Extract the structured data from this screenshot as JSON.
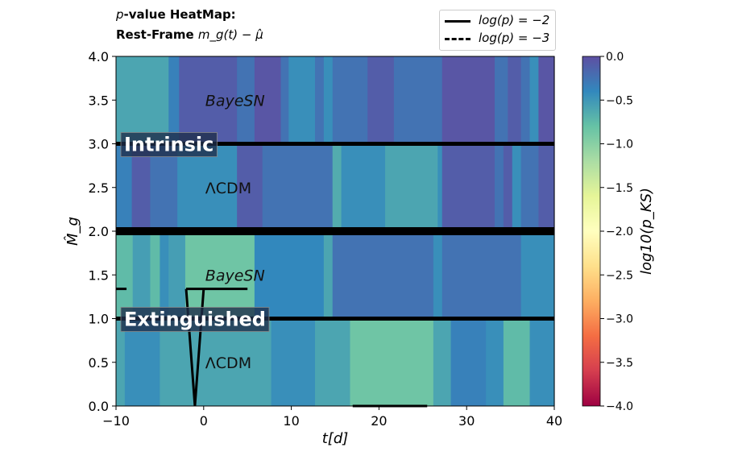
{
  "title": {
    "line1_prefix": "p",
    "line1_suffix": "-value HeatMap:",
    "line2_bold": "Rest-Frame ",
    "line2_math": "m_g(t) − μ̂"
  },
  "legend": [
    {
      "label": "log(p) = −2",
      "style": "solid"
    },
    {
      "label": "log(p) = −3",
      "style": "dashed"
    }
  ],
  "chart_data": {
    "type": "heatmap",
    "xlabel": "t[d]",
    "ylabel": "M̂_g",
    "xlim": [
      -10,
      40
    ],
    "ylim": [
      0,
      4
    ],
    "xticks": [
      -10,
      0,
      10,
      20,
      30,
      40
    ],
    "yticks": [
      0.0,
      0.5,
      1.0,
      1.5,
      2.0,
      2.5,
      3.0,
      3.5,
      4.0
    ],
    "colorbar": {
      "label": "log10(p_KS)",
      "range": [
        -4,
        0
      ],
      "ticks": [
        0.0,
        -0.5,
        -1.0,
        -1.5,
        -2.0,
        -2.5,
        -3.0,
        -3.5,
        -4.0
      ],
      "colormap": "Spectral"
    },
    "bands": [
      {
        "ylim": [
          3.0,
          4.0
        ],
        "label": "BayeSN",
        "label_pos": [
          0,
          3.5
        ],
        "segments": [
          {
            "x0": -10,
            "x1": -4,
            "v": -0.6
          },
          {
            "x0": -4,
            "x1": -2.8,
            "v": -0.35
          },
          {
            "x0": -2.8,
            "x1": 3.8,
            "v": -0.1
          },
          {
            "x0": 3.8,
            "x1": 5.8,
            "v": -0.25
          },
          {
            "x0": 5.8,
            "x1": 8.8,
            "v": -0.05
          },
          {
            "x0": 8.8,
            "x1": 9.7,
            "v": -0.25
          },
          {
            "x0": 9.7,
            "x1": 12.7,
            "v": -0.45
          },
          {
            "x0": 12.7,
            "x1": 13.7,
            "v": -0.25
          },
          {
            "x0": 13.7,
            "x1": 14.7,
            "v": -0.45
          },
          {
            "x0": 14.7,
            "x1": 18.7,
            "v": -0.25
          },
          {
            "x0": 18.7,
            "x1": 21.7,
            "v": -0.1
          },
          {
            "x0": 21.7,
            "x1": 27.2,
            "v": -0.25
          },
          {
            "x0": 27.2,
            "x1": 33.2,
            "v": -0.05
          },
          {
            "x0": 33.2,
            "x1": 34.7,
            "v": -0.25
          },
          {
            "x0": 34.7,
            "x1": 36.2,
            "v": -0.1
          },
          {
            "x0": 36.2,
            "x1": 37.2,
            "v": -0.25
          },
          {
            "x0": 37.2,
            "x1": 38.2,
            "v": -0.45
          },
          {
            "x0": 38.2,
            "x1": 40,
            "v": -0.05
          }
        ]
      },
      {
        "ylim": [
          2.0,
          3.0
        ],
        "label": "ΛCDM",
        "label_pos": [
          0,
          2.5
        ],
        "segments": [
          {
            "x0": -10,
            "x1": -8.2,
            "v": -0.35
          },
          {
            "x0": -8.2,
            "x1": -6.1,
            "v": -0.1
          },
          {
            "x0": -6.1,
            "x1": -3,
            "v": -0.25
          },
          {
            "x0": -3,
            "x1": 3.8,
            "v": -0.45
          },
          {
            "x0": 3.8,
            "x1": 6.7,
            "v": -0.1
          },
          {
            "x0": 6.7,
            "x1": 14.7,
            "v": -0.25
          },
          {
            "x0": 14.7,
            "x1": 15.7,
            "v": -0.65
          },
          {
            "x0": 15.7,
            "x1": 20.7,
            "v": -0.45
          },
          {
            "x0": 20.7,
            "x1": 26.7,
            "v": -0.6
          },
          {
            "x0": 26.7,
            "x1": 27.2,
            "v": -0.45
          },
          {
            "x0": 27.2,
            "x1": 33.2,
            "v": -0.1
          },
          {
            "x0": 33.2,
            "x1": 34.2,
            "v": -0.25
          },
          {
            "x0": 34.2,
            "x1": 35.2,
            "v": -0.1
          },
          {
            "x0": 35.2,
            "x1": 36.2,
            "v": -0.45
          },
          {
            "x0": 36.2,
            "x1": 38.2,
            "v": -0.25
          },
          {
            "x0": 38.2,
            "x1": 40,
            "v": -0.1
          }
        ]
      },
      {
        "ylim": [
          1.0,
          2.0
        ],
        "label": "BayeSN",
        "label_pos": [
          0,
          1.5
        ],
        "segments": [
          {
            "x0": -10,
            "x1": -8.1,
            "v": -0.75
          },
          {
            "x0": -8.1,
            "x1": -6.1,
            "v": -0.55
          },
          {
            "x0": -6.1,
            "x1": -5,
            "v": -0.75
          },
          {
            "x0": -5,
            "x1": -4,
            "v": -0.45
          },
          {
            "x0": -4,
            "x1": -2.1,
            "v": -0.55
          },
          {
            "x0": -2.1,
            "x1": 5.8,
            "v": -0.85
          },
          {
            "x0": 5.8,
            "x1": 13.7,
            "v": -0.4
          },
          {
            "x0": 13.7,
            "x1": 14.7,
            "v": -0.6
          },
          {
            "x0": 14.7,
            "x1": 26.2,
            "v": -0.25
          },
          {
            "x0": 26.2,
            "x1": 27.2,
            "v": -0.45
          },
          {
            "x0": 27.2,
            "x1": 36.2,
            "v": -0.25
          },
          {
            "x0": 36.2,
            "x1": 40,
            "v": -0.45
          }
        ]
      },
      {
        "ylim": [
          0.0,
          1.0
        ],
        "label": "ΛCDM",
        "label_pos": [
          0,
          0.5
        ],
        "segments": [
          {
            "x0": -10,
            "x1": -9,
            "v": -0.6
          },
          {
            "x0": -9,
            "x1": -5,
            "v": -0.45
          },
          {
            "x0": -5,
            "x1": 7.7,
            "v": -0.6
          },
          {
            "x0": 7.7,
            "x1": 12.7,
            "v": -0.45
          },
          {
            "x0": 12.7,
            "x1": 16.7,
            "v": -0.6
          },
          {
            "x0": 16.7,
            "x1": 26.2,
            "v": -0.85
          },
          {
            "x0": 26.2,
            "x1": 28.2,
            "v": -0.6
          },
          {
            "x0": 28.2,
            "x1": 32.2,
            "v": -0.35
          },
          {
            "x0": 32.2,
            "x1": 34.2,
            "v": -0.45
          },
          {
            "x0": 34.2,
            "x1": 37.2,
            "v": -0.75
          },
          {
            "x0": 37.2,
            "x1": 40,
            "v": -0.45
          }
        ]
      }
    ],
    "hlines": [
      {
        "y": 3.0,
        "style": "solid"
      },
      {
        "y": 2.0,
        "style": "solid"
      },
      {
        "y": 1.0,
        "style": "solid"
      }
    ],
    "contours": [
      {
        "style": "solid",
        "points": [
          [
            -2,
            1.34
          ],
          [
            5,
            1.34
          ]
        ]
      },
      {
        "style": "solid",
        "points": [
          [
            -2,
            1.34
          ],
          [
            -1,
            0.0
          ],
          [
            0,
            1.34
          ]
        ]
      },
      {
        "style": "solid",
        "points": [
          [
            -10,
            1.34
          ],
          [
            -8.8,
            1.34
          ]
        ]
      },
      {
        "style": "solid",
        "points": [
          [
            17,
            0.0
          ],
          [
            25.5,
            0.0
          ]
        ]
      }
    ],
    "annotations": [
      {
        "text": "Intrinsic",
        "x": -10,
        "y": 3.0
      },
      {
        "text": "Extinguished",
        "x": -10,
        "y": 1.0
      }
    ]
  }
}
